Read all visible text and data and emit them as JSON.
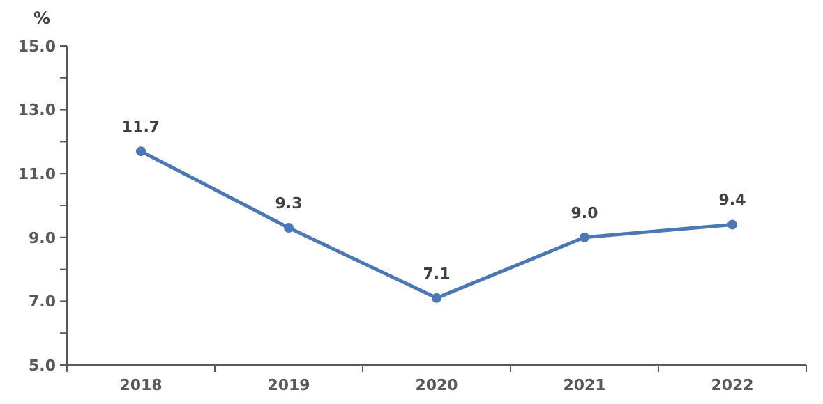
{
  "chart_data": {
    "type": "line",
    "ylabel": "%",
    "categories": [
      "2018",
      "2019",
      "2020",
      "2021",
      "2022"
    ],
    "series": [
      {
        "color": "#4a78b6",
        "values": [
          11.7,
          9.3,
          7.1,
          9.0,
          9.4
        ]
      }
    ],
    "ylim": [
      5,
      15
    ],
    "yticks": [
      {
        "value": 5,
        "label": "5.0"
      },
      {
        "value": 6,
        "label": null
      },
      {
        "value": 7,
        "label": "7.0"
      },
      {
        "value": 8,
        "label": null
      },
      {
        "value": 9,
        "label": "9.0"
      },
      {
        "value": 10,
        "label": null
      },
      {
        "value": 11,
        "label": "11.0"
      },
      {
        "value": 12,
        "label": null
      },
      {
        "value": 13,
        "label": "13.0"
      },
      {
        "value": 14,
        "label": null
      },
      {
        "value": 15,
        "label": "15.0"
      }
    ],
    "value_labels": [
      "11.7",
      "9.3",
      "7.1",
      "9.0",
      "9.4"
    ],
    "marker": "circle",
    "grid": false
  }
}
